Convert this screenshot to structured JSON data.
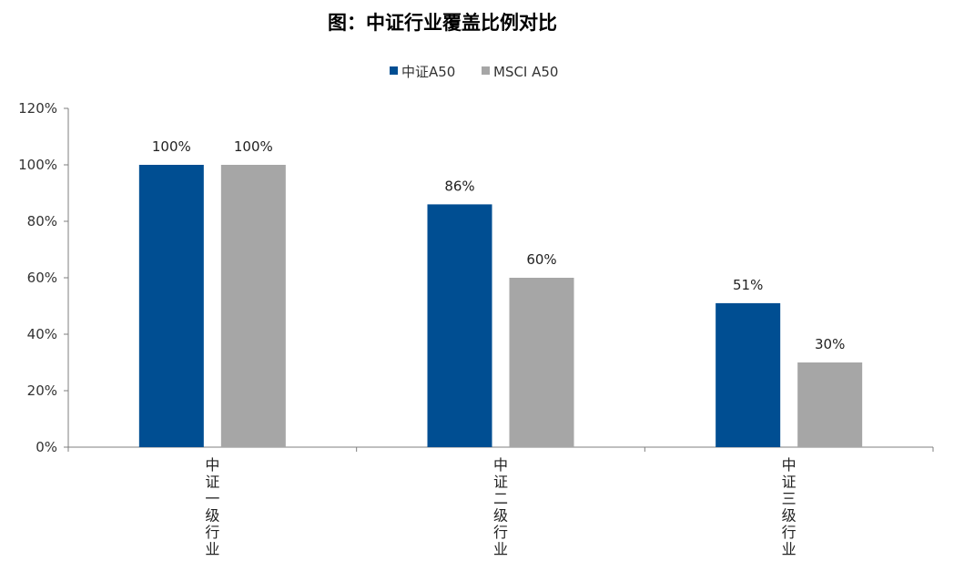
{
  "chart_data": {
    "type": "bar",
    "title": "图：中证行业覆盖比例对比",
    "categories": [
      "中证一级行业",
      "中证二级行业",
      "中证三级行业"
    ],
    "series": [
      {
        "name": "中证A50",
        "values": [
          100,
          86,
          51
        ],
        "labels": [
          "100%",
          "86%",
          "51%"
        ],
        "color": "#004e92"
      },
      {
        "name": "MSCI A50",
        "values": [
          100,
          60,
          30
        ],
        "labels": [
          "100%",
          "60%",
          "30%"
        ],
        "color": "#a6a6a6"
      }
    ],
    "ylim": [
      0,
      120
    ],
    "yticks": [
      0,
      20,
      40,
      60,
      80,
      100,
      120
    ],
    "ytick_labels": [
      "0%",
      "20%",
      "40%",
      "60%",
      "80%",
      "100%",
      "120%"
    ],
    "grid": false,
    "legend": "top-center"
  }
}
